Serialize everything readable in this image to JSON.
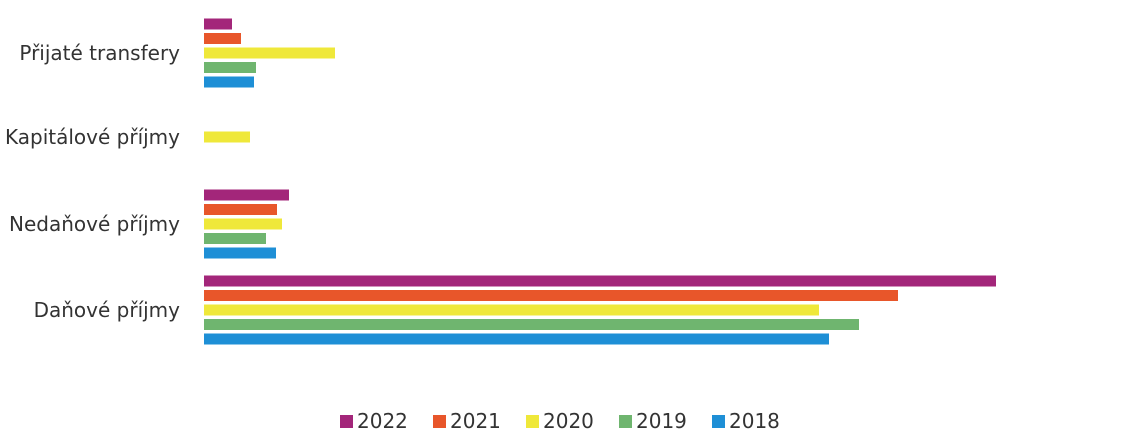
{
  "chart_data": {
    "type": "bar",
    "orientation": "horizontal",
    "categories": [
      "Přijaté transfery",
      "Kapitálové příjmy",
      "Nedaňové příjmy",
      "Daňové příjmy"
    ],
    "series": [
      {
        "name": "2022",
        "color": "#a3267a",
        "values": [
          28,
          0,
          85,
          792
        ]
      },
      {
        "name": "2021",
        "color": "#e8562a",
        "values": [
          37,
          0,
          73,
          694
        ]
      },
      {
        "name": "2020",
        "color": "#efe83a",
        "values": [
          131,
          46,
          78,
          615
        ]
      },
      {
        "name": "2019",
        "color": "#6fb56f",
        "values": [
          52,
          0,
          62,
          655
        ]
      },
      {
        "name": "2018",
        "color": "#1e8fd6",
        "values": [
          50,
          0,
          72,
          625
        ]
      }
    ],
    "xlim": [
      0,
      800
    ],
    "axis_visible": false,
    "grid": false,
    "legend": {
      "position": "bottom"
    }
  }
}
